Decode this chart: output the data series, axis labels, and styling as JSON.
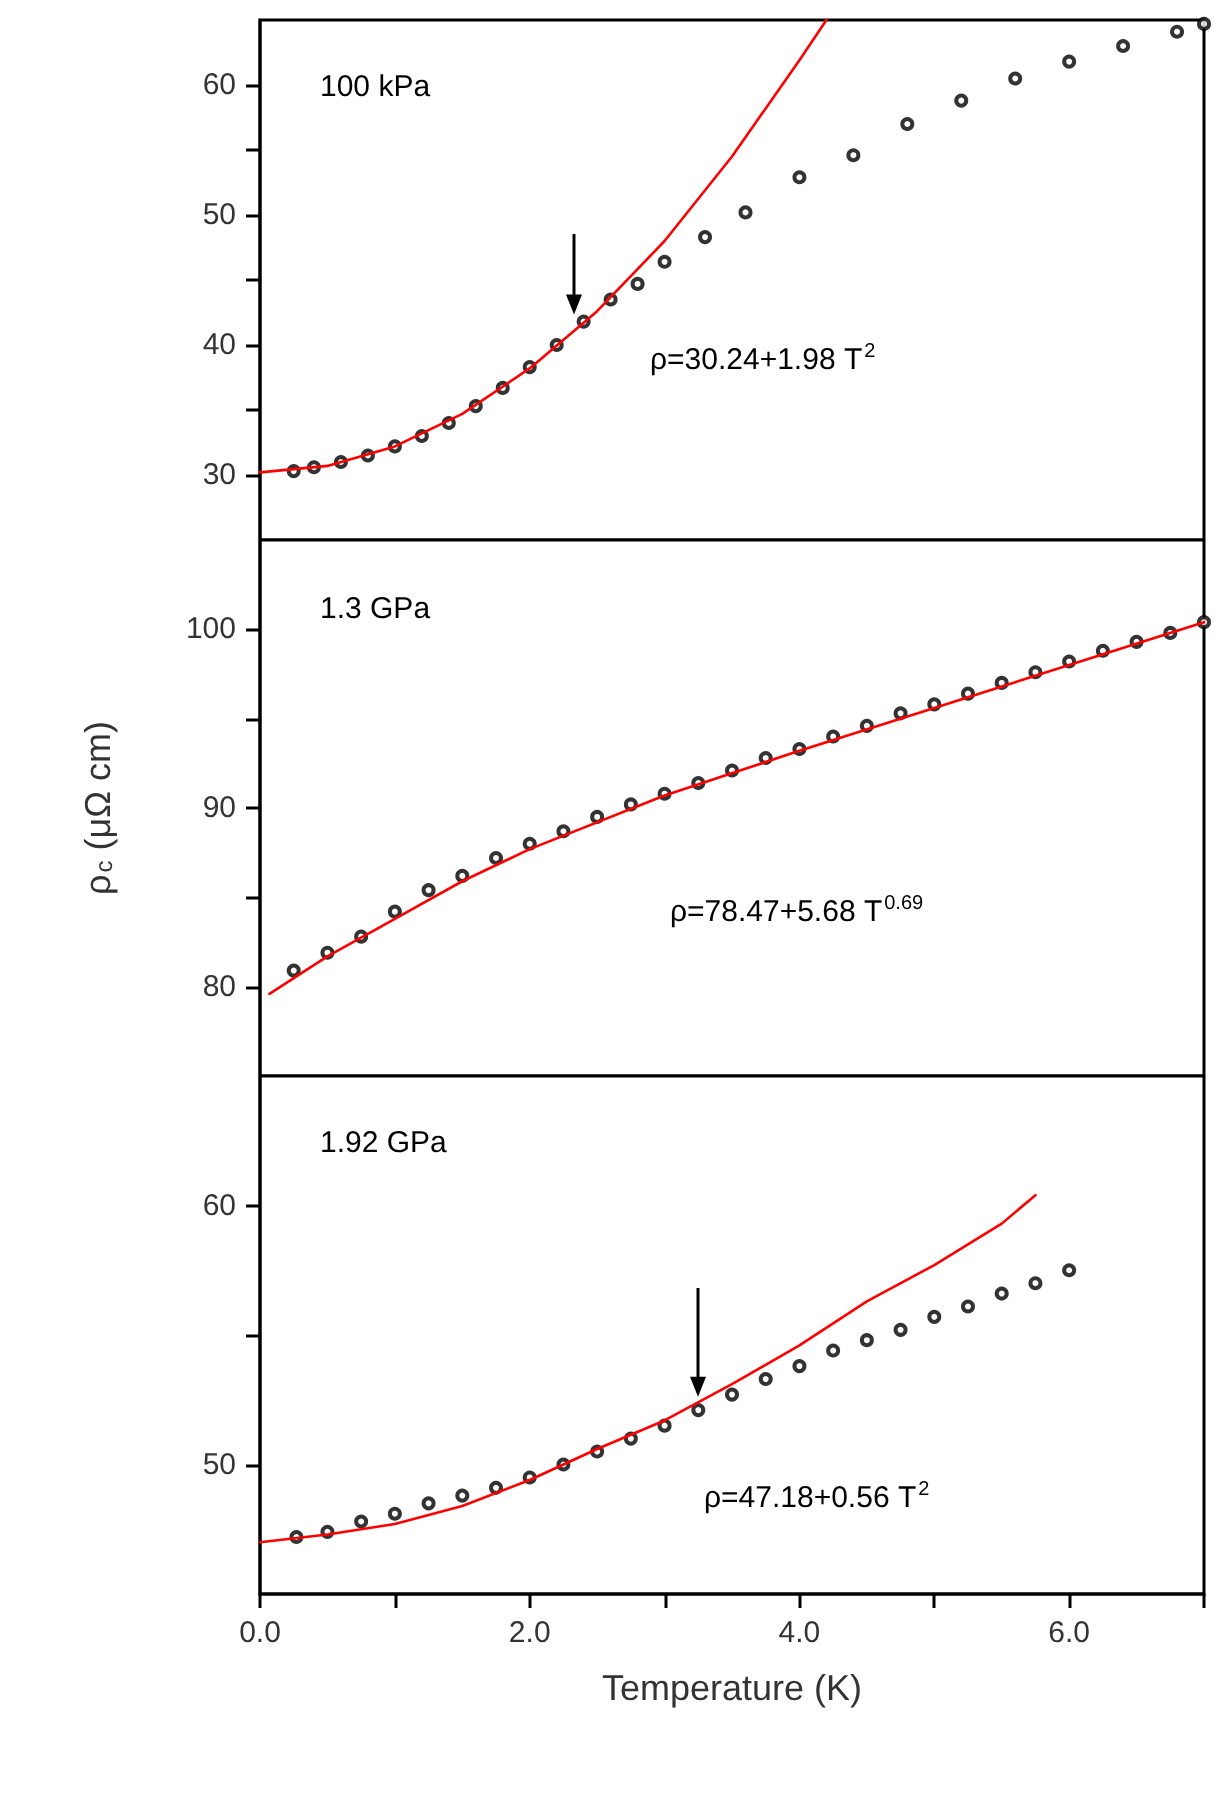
{
  "chart_data": [
    {
      "type": "scatter",
      "annotations": [
        "100 kPa",
        "ρ=30.24+1.98 T$^{2}$"
      ],
      "xlim": [
        0,
        7
      ],
      "xticks": [
        {
          "value": 0,
          "label": null
        },
        {
          "value": 1,
          "label": null
        },
        {
          "value": 2,
          "label": null
        },
        {
          "value": 3,
          "label": null
        },
        {
          "value": 4,
          "label": null
        },
        {
          "value": 5,
          "label": null
        },
        {
          "value": 6,
          "label": null
        },
        {
          "value": 7,
          "label": null
        }
      ],
      "ylim": [
        25,
        65
      ],
      "yticks": [
        30,
        {
          "value": 35,
          "label": null
        },
        40,
        {
          "value": 45,
          "label": null
        },
        50,
        {
          "value": 55,
          "label": null
        },
        60
      ],
      "tick_labels": "y",
      "grid": false,
      "series": [
        {
          "color": "#000000",
          "marker": "circle",
          "x": [
            0.25,
            0.4,
            0.6,
            0.8,
            1.0,
            1.2,
            1.4,
            1.6,
            1.8,
            2.0,
            2.2,
            2.4,
            2.6,
            2.8,
            3.0,
            3.3,
            3.6,
            4.0,
            4.4,
            4.8,
            5.2,
            5.6,
            6.0,
            6.4,
            6.8,
            7.0
          ],
          "values": [
            30.3,
            30.6,
            31.0,
            31.5,
            32.2,
            33.0,
            34.0,
            35.3,
            36.7,
            38.3,
            40.0,
            41.8,
            43.5,
            44.7,
            46.4,
            48.3,
            50.2,
            52.9,
            54.6,
            57.0,
            58.8,
            60.5,
            61.8,
            63.0,
            64.1,
            64.7
          ]
        },
        {
          "type": "line",
          "color": "#ff0000",
          "marker": "none",
          "line_style": "solid",
          "x": [
            0,
            0.5,
            1.0,
            1.5,
            2.0,
            2.5,
            3.0,
            3.5,
            4.0,
            4.2
          ],
          "values": [
            30.2,
            30.7,
            32.2,
            34.7,
            38.2,
            42.6,
            48.0,
            54.5,
            61.9,
            65.0
          ]
        }
      ]
    },
    {
      "type": "scatter",
      "ylabel": "ρ$_{c}$ (μΩ cm)",
      "annotations": [
        "1.3 GPa",
        "ρ=78.47+5.68 T$^{0.69}$"
      ],
      "xlim": [
        0,
        7
      ],
      "xticks": [
        {
          "value": 0,
          "label": null
        },
        {
          "value": 1,
          "label": null
        },
        {
          "value": 2,
          "label": null
        },
        {
          "value": 3,
          "label": null
        },
        {
          "value": 4,
          "label": null
        },
        {
          "value": 5,
          "label": null
        },
        {
          "value": 6,
          "label": null
        },
        {
          "value": 7,
          "label": null
        }
      ],
      "ylim": [
        75,
        105
      ],
      "yticks": [
        80,
        {
          "value": 85,
          "label": null
        },
        90,
        {
          "value": 95,
          "label": null
        },
        100
      ],
      "tick_labels": "y",
      "grid": false,
      "series": [
        {
          "color": "#000000",
          "marker": "circle",
          "x": [
            0.25,
            0.5,
            0.75,
            1.0,
            1.25,
            1.5,
            1.75,
            2.0,
            2.25,
            2.5,
            2.75,
            3.0,
            3.25,
            3.5,
            3.75,
            4.0,
            4.25,
            4.5,
            4.75,
            5.0,
            5.25,
            5.5,
            5.75,
            6.0,
            6.25,
            6.5,
            6.75,
            7.0
          ],
          "values": [
            80.9,
            81.9,
            82.8,
            84.2,
            85.4,
            86.2,
            87.2,
            88.0,
            88.7,
            89.5,
            90.2,
            90.8,
            91.4,
            92.1,
            92.8,
            93.3,
            94.0,
            94.6,
            95.3,
            95.8,
            96.4,
            97.0,
            97.6,
            98.2,
            98.8,
            99.3,
            99.8,
            100.4
          ]
        },
        {
          "type": "line",
          "color": "#ff0000",
          "marker": "none",
          "line_style": "solid",
          "x": [
            0.07,
            0.5,
            1.0,
            1.5,
            2.0,
            3.0,
            4.0,
            5.0,
            6.0,
            7.0
          ],
          "values": [
            79.6,
            81.7,
            83.8,
            85.9,
            87.7,
            90.7,
            93.2,
            95.6,
            98.0,
            100.4
          ]
        }
      ]
    },
    {
      "type": "scatter",
      "xlabel": "Temperature (K)",
      "annotations": [
        "1.92 GPa",
        "ρ=47.18+0.56 T$^{2}$"
      ],
      "xlim": [
        0,
        7
      ],
      "xticks": [
        {
          "value": 0,
          "label": "0.0"
        },
        {
          "value": 1,
          "label": null
        },
        {
          "value": 2,
          "label": "2.0"
        },
        {
          "value": 3,
          "label": null
        },
        {
          "value": 4,
          "label": "4.0"
        },
        {
          "value": 5,
          "label": null
        },
        {
          "value": 6,
          "label": "6.0"
        },
        {
          "value": 7,
          "label": null
        }
      ],
      "ylim": [
        45,
        65
      ],
      "yticks": [
        50,
        {
          "value": 55,
          "label": null
        },
        60
      ],
      "grid": false,
      "series": [
        {
          "color": "#000000",
          "marker": "circle",
          "x": [
            0.27,
            0.5,
            0.75,
            1.0,
            1.25,
            1.5,
            1.75,
            2.0,
            2.25,
            2.5,
            2.75,
            3.0,
            3.25,
            3.5,
            3.75,
            4.0,
            4.25,
            4.5,
            4.75,
            5.0,
            5.25,
            5.5,
            5.75,
            6.0
          ],
          "values": [
            47.2,
            47.4,
            47.8,
            48.1,
            48.5,
            48.8,
            49.1,
            49.5,
            50.0,
            50.5,
            51.0,
            51.5,
            52.1,
            52.7,
            53.3,
            53.8,
            54.4,
            54.8,
            55.2,
            55.7,
            56.1,
            56.6,
            57.0,
            57.5
          ]
        },
        {
          "type": "line",
          "color": "#ff0000",
          "marker": "none",
          "line_style": "solid",
          "x": [
            0,
            0.5,
            1.0,
            1.5,
            2.0,
            2.5,
            3.0,
            3.5,
            4.0,
            4.5,
            5.0,
            5.5,
            5.75
          ],
          "values": [
            47.0,
            47.3,
            47.7,
            48.4,
            49.4,
            50.6,
            51.7,
            53.1,
            54.6,
            56.3,
            57.7,
            59.3,
            60.4
          ]
        }
      ]
    }
  ]
}
